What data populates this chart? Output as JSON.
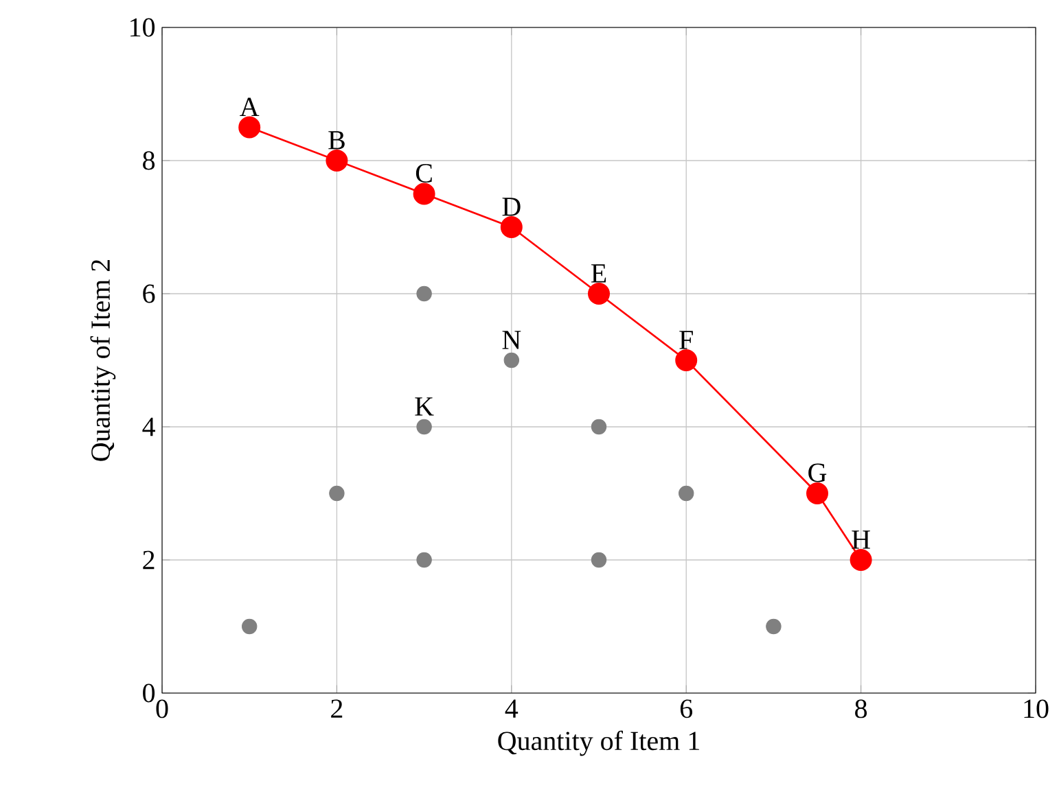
{
  "chart_data": {
    "type": "scatter",
    "xlabel": "Quantity of Item 1",
    "ylabel": "Quantity of Item 2",
    "xlim": [
      0,
      10
    ],
    "ylim": [
      0,
      10
    ],
    "xticks": [
      0,
      2,
      4,
      6,
      8,
      10
    ],
    "yticks": [
      0,
      2,
      4,
      6,
      8,
      10
    ],
    "grid": true,
    "marker": "circle",
    "line_style": "solid",
    "series": [
      {
        "type": "line",
        "color": "#ff0000",
        "x": [
          1,
          2,
          3,
          4,
          5,
          6,
          7.5,
          8
        ],
        "values": [
          8.5,
          8,
          7.5,
          7,
          6,
          5,
          3,
          2
        ]
      },
      {
        "color": "#808080",
        "x": [
          1,
          2,
          3,
          3,
          3,
          4,
          5,
          5,
          6,
          7
        ],
        "values": [
          1,
          3,
          6,
          4,
          2,
          5,
          4,
          2,
          3,
          1
        ]
      }
    ],
    "annotations": [
      {
        "text": "A",
        "x": 1,
        "y": 8.5
      },
      {
        "text": "B",
        "x": 2,
        "y": 8
      },
      {
        "text": "C",
        "x": 3,
        "y": 7.5
      },
      {
        "text": "D",
        "x": 4,
        "y": 7
      },
      {
        "text": "E",
        "x": 5,
        "y": 6
      },
      {
        "text": "F",
        "x": 6,
        "y": 5
      },
      {
        "text": "G",
        "x": 7.5,
        "y": 3
      },
      {
        "text": "H",
        "x": 8,
        "y": 2
      },
      {
        "text": "K",
        "x": 3,
        "y": 4
      },
      {
        "text": "N",
        "x": 4,
        "y": 5
      }
    ]
  }
}
